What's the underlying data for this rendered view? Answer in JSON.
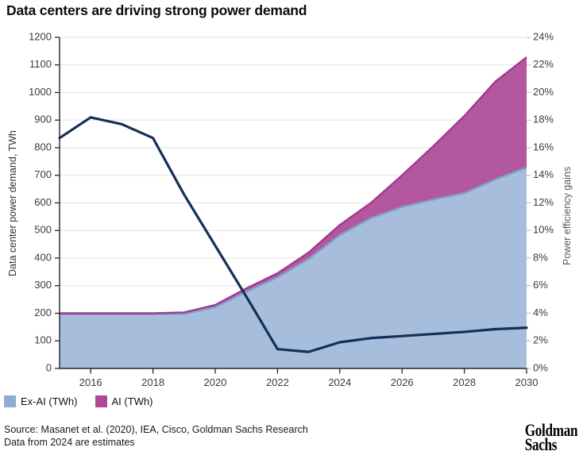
{
  "title": "Data centers are driving strong power demand",
  "chart": {
    "legend": [
      {
        "label": "Ex-AI (TWh)",
        "color": "#8fadd4"
      },
      {
        "label": "AI (TWh)",
        "color": "#ad4796"
      }
    ]
  },
  "footer": {
    "source_line1": "Source: Masanet et al. (2020), IEA, Cisco, Goldman Sachs Research",
    "source_line2": "Data from 2024 are estimates",
    "logo_line1": "Goldman",
    "logo_line2": "Sachs"
  },
  "chart_data": {
    "type": "area",
    "title": "Data centers are driving strong power demand",
    "x": [
      2015,
      2016,
      2017,
      2018,
      2019,
      2020,
      2021,
      2022,
      2023,
      2024,
      2025,
      2026,
      2027,
      2028,
      2029,
      2030
    ],
    "x_ticks": [
      2016,
      2018,
      2020,
      2022,
      2024,
      2026,
      2028,
      2030
    ],
    "series": [
      {
        "name": "Ex-AI (TWh)",
        "type": "stacked-area",
        "axis": "left",
        "values": [
          197,
          197,
          197,
          197,
          197,
          222,
          278,
          330,
          397,
          483,
          545,
          585,
          612,
          635,
          685,
          728
        ]
      },
      {
        "name": "AI (TWh)",
        "type": "stacked-area",
        "axis": "left",
        "values": [
          3,
          3,
          3,
          3,
          6,
          8,
          12,
          15,
          23,
          37,
          55,
          115,
          193,
          280,
          355,
          400
        ]
      },
      {
        "name": "Power efficiency gains",
        "type": "line",
        "axis": "right",
        "values_pct": [
          16.7,
          18.2,
          17.7,
          16.7,
          12.6,
          8.9,
          5.2,
          1.4,
          1.2,
          1.9,
          2.2,
          2.35,
          2.5,
          2.65,
          2.85,
          2.95
        ]
      }
    ],
    "y_left": {
      "label": "Data center power demand, TWh",
      "min": 0,
      "max": 1200,
      "tick_step": 100,
      "ticks": [
        "0",
        "100",
        "200",
        "300",
        "400",
        "500",
        "600",
        "700",
        "800",
        "900",
        "1000",
        "1100",
        "1200"
      ]
    },
    "y_right": {
      "label": "Power efficiency gains",
      "min": 0,
      "max": 24,
      "tick_step": 2,
      "ticks": [
        "0%",
        "2%",
        "4%",
        "6%",
        "8%",
        "10%",
        "12%",
        "14%",
        "16%",
        "18%",
        "20%",
        "22%",
        "24%"
      ]
    },
    "grid": true,
    "legend_position": "bottom-left",
    "colors": {
      "ex_ai_fill": "#a6bedb",
      "ex_ai_edge": "#7da2cc",
      "ai_fill": "#b3589e",
      "ai_edge": "#a23a8d",
      "efficiency_line": "#14305a",
      "gridline": "#e3e3e3",
      "axis_spine": "#262626",
      "tick_label": "#3b3b3b",
      "right_tick_mark": "#c4c4c4"
    }
  }
}
